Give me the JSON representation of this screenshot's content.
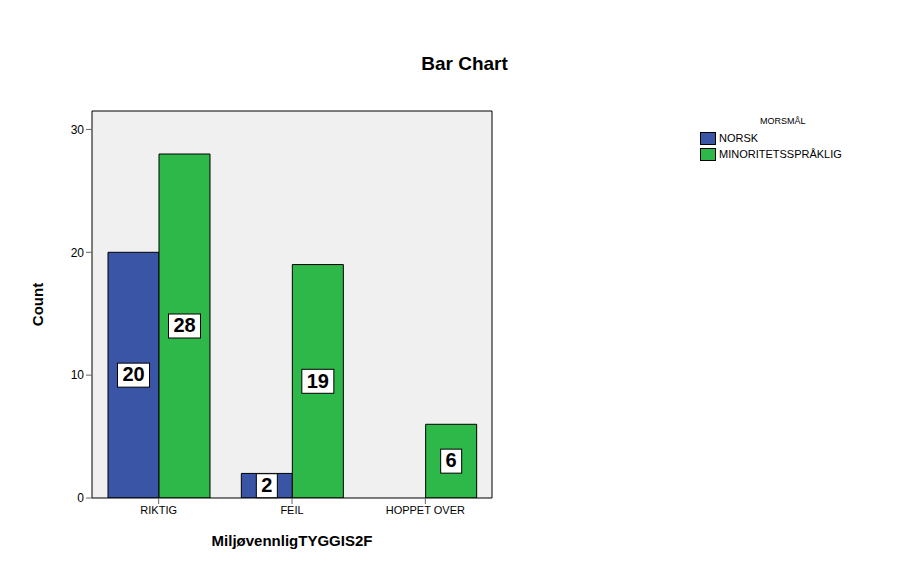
{
  "chart_data": {
    "type": "bar",
    "title": "Bar Chart",
    "x_label": "MiljøvennligTYGGIS2F",
    "y_label": "Count",
    "legend_title": "MORSMÅL",
    "categories": [
      "RIKTIG",
      "FEIL",
      "HOPPET OVER"
    ],
    "series": [
      {
        "name": "NORSK",
        "color": "#3b55a6",
        "values": [
          20,
          2,
          null
        ]
      },
      {
        "name": "MINORITETSSPRÅKLIG",
        "color": "#2fb84a",
        "values": [
          28,
          19,
          6
        ]
      }
    ],
    "ylim": [
      0,
      31.5
    ],
    "yticks": [
      0,
      10,
      20,
      30
    ],
    "grid": false,
    "legend": "upper right",
    "data_labels": true
  }
}
